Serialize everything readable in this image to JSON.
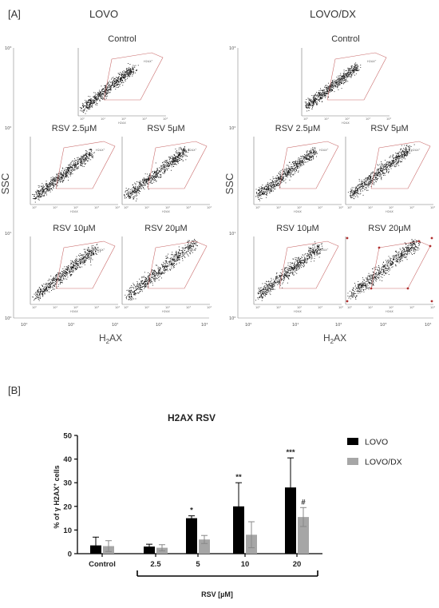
{
  "panel_a": {
    "label": "[A]",
    "y_axis_label": "SSC",
    "x_axis_label_base": "H",
    "x_axis_label_sub": "2",
    "x_axis_label_tail": "AX",
    "outer_ticks_y": [
      "10³",
      "10²",
      "10¹",
      "10⁰"
    ],
    "outer_ticks_x": [
      "10⁰",
      "10¹",
      "10²",
      "10³",
      "10⁴"
    ],
    "gate_label": "H2AX⁺",
    "inner_axis_label": "H2AX",
    "columns": [
      {
        "title": "LOVO",
        "plots": [
          {
            "label": "Control"
          },
          {
            "label": "RSV 2.5μM"
          },
          {
            "label": "RSV 5μM"
          },
          {
            "label": "RSV 10μM"
          },
          {
            "label": "RSV 20μM"
          }
        ]
      },
      {
        "title": "LOVO/DX",
        "plots": [
          {
            "label": "Control"
          },
          {
            "label": "RSV 2.5μM"
          },
          {
            "label": "RSV 5μM"
          },
          {
            "label": "RSV 10μM"
          },
          {
            "label": "RSV 20μM"
          }
        ]
      }
    ]
  },
  "panel_b": {
    "label": "[B]"
  },
  "chart_data": {
    "type": "bar",
    "title": "H2AX RSV",
    "ylabel_prefix": "% of γ H2AX",
    "ylabel_sup": "+",
    "ylabel_suffix": " cells",
    "xlabel": "RSV [µM]",
    "categories": [
      "Control",
      "2.5",
      "5",
      "10",
      "20"
    ],
    "ylim": [
      0,
      50
    ],
    "yticks": [
      "0",
      "10",
      "20",
      "30",
      "40",
      "50"
    ],
    "legend_position": "top-right",
    "series": [
      {
        "name": "LOVO",
        "color": "#000000",
        "values": [
          3.5,
          3,
          15,
          20,
          28
        ],
        "errors": [
          3.5,
          1,
          1,
          10,
          12.5
        ],
        "annotations": [
          "",
          "",
          "*",
          "**",
          "***"
        ]
      },
      {
        "name": "LOVO/DX",
        "color": "#a6a6a6",
        "values": [
          3.2,
          2.5,
          6,
          8,
          15.5
        ],
        "errors": [
          2.3,
          1.3,
          1.7,
          5.5,
          4
        ],
        "annotations": [
          "",
          "",
          "",
          "",
          "#"
        ]
      }
    ]
  }
}
